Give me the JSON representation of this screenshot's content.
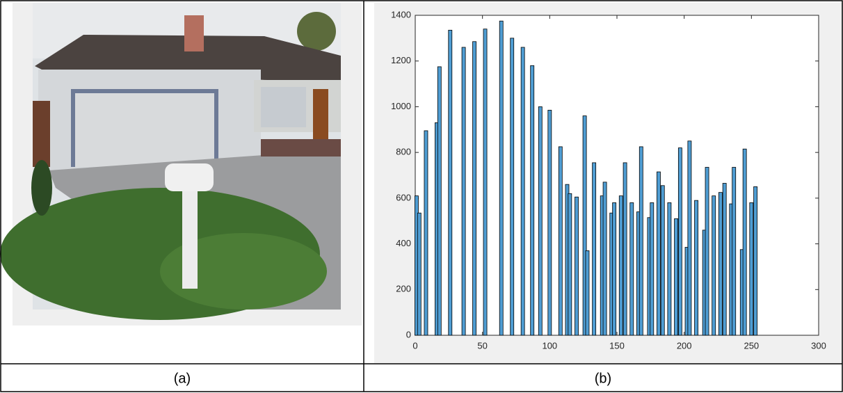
{
  "chart_data": {
    "type": "bar",
    "x": [
      1,
      3,
      8,
      16,
      18,
      26,
      36,
      44,
      52,
      64,
      72,
      80,
      87,
      93,
      100,
      108,
      113,
      115,
      120,
      126,
      128,
      133,
      139,
      141,
      146,
      148,
      153,
      156,
      161,
      166,
      168,
      174,
      176,
      181,
      184,
      189,
      194,
      197,
      202,
      204,
      209,
      215,
      217,
      222,
      227,
      230,
      235,
      237,
      243,
      245,
      250,
      253
    ],
    "values": [
      610,
      535,
      895,
      930,
      1175,
      1335,
      1260,
      1285,
      1340,
      1375,
      1300,
      1260,
      1180,
      1000,
      985,
      825,
      660,
      620,
      605,
      960,
      370,
      755,
      610,
      670,
      535,
      580,
      610,
      755,
      580,
      540,
      825,
      515,
      580,
      715,
      655,
      580,
      510,
      820,
      385,
      850,
      590,
      460,
      735,
      610,
      625,
      665,
      575,
      735,
      375,
      815,
      580,
      650
    ],
    "color": "#4f9dd3",
    "xlim": [
      0,
      300
    ],
    "xticks": [
      0,
      50,
      100,
      150,
      200,
      250,
      300
    ],
    "ylim": [
      0,
      1400
    ],
    "yticks": [
      0,
      200,
      400,
      600,
      800,
      1000,
      1200,
      1400
    ]
  },
  "captions": [
    "(a)",
    "(b)"
  ]
}
